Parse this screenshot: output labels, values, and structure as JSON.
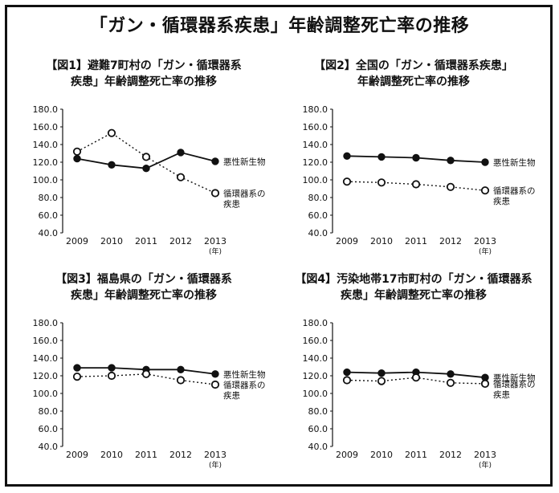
{
  "title": "「ガン・循環器系疾患」年齢調整死亡率の推移",
  "year_unit": "(年)",
  "chart_data": [
    {
      "type": "line",
      "title_lines": [
        "【図1】避難7町村の「ガン・循環器系",
        "疾患」年齢調整死亡率の推移"
      ],
      "categories": [
        "2009",
        "2010",
        "2011",
        "2012",
        "2013"
      ],
      "ylim": [
        40,
        180
      ],
      "yticks": [
        "180.0",
        "160.0",
        "140.0",
        "120.0",
        "100.0",
        "80.0",
        "60.0",
        "40.0"
      ],
      "series": [
        {
          "name": "悪性新生物",
          "label_lines": [
            "悪性新生物"
          ],
          "style": "solid",
          "values": [
            124,
            117,
            113,
            131,
            121
          ]
        },
        {
          "name": "循環器系の疾患",
          "label_lines": [
            "循環器系の",
            "疾患"
          ],
          "style": "dotted",
          "values": [
            132,
            153,
            126,
            103,
            85
          ]
        }
      ]
    },
    {
      "type": "line",
      "title_lines": [
        "【図2】全国の「ガン・循環器系疾患」",
        "年齢調整死亡率の推移"
      ],
      "categories": [
        "2009",
        "2010",
        "2011",
        "2012",
        "2013"
      ],
      "ylim": [
        40,
        180
      ],
      "yticks": [
        "180.0",
        "160.0",
        "140.0",
        "120.0",
        "100.0",
        "80.0",
        "60.0",
        "40.0"
      ],
      "series": [
        {
          "name": "悪性新生物",
          "label_lines": [
            "悪性新生物"
          ],
          "style": "solid",
          "values": [
            127,
            126,
            125,
            122,
            120
          ]
        },
        {
          "name": "循環器系の疾患",
          "label_lines": [
            "循環器系の",
            "疾患"
          ],
          "style": "dotted",
          "values": [
            98,
            97,
            95,
            92,
            88
          ]
        }
      ]
    },
    {
      "type": "line",
      "title_lines": [
        "【図3】福島県の「ガン・循環器系",
        "疾患」年齢調整死亡率の推移"
      ],
      "categories": [
        "2009",
        "2010",
        "2011",
        "2012",
        "2013"
      ],
      "ylim": [
        40,
        180
      ],
      "yticks": [
        "180.0",
        "160.0",
        "140.0",
        "120.0",
        "100.0",
        "80.0",
        "60.0",
        "40.0"
      ],
      "series": [
        {
          "name": "悪性新生物",
          "label_lines": [
            "悪性新生物"
          ],
          "style": "solid",
          "values": [
            129,
            129,
            127,
            127,
            122
          ]
        },
        {
          "name": "循環器系の疾患",
          "label_lines": [
            "循環器系の",
            "疾患"
          ],
          "style": "dotted",
          "values": [
            119,
            120,
            122,
            115,
            110
          ]
        }
      ]
    },
    {
      "type": "line",
      "title_lines": [
        "【図4】汚染地帯17市町村の「ガン・循環器系",
        "疾患」年齢調整死亡率の推移"
      ],
      "categories": [
        "2009",
        "2010",
        "2011",
        "2012",
        "2013"
      ],
      "ylim": [
        40,
        180
      ],
      "yticks": [
        "180.0",
        "160.0",
        "140.0",
        "120.0",
        "100.0",
        "80.0",
        "60.0",
        "40.0"
      ],
      "series": [
        {
          "name": "悪性新生物",
          "label_lines": [
            "悪性新生物"
          ],
          "style": "solid",
          "values": [
            124,
            123,
            124,
            122,
            118
          ]
        },
        {
          "name": "循環器系の疾患",
          "label_lines": [
            "循環器系の",
            "疾患"
          ],
          "style": "dotted",
          "values": [
            115,
            114,
            118,
            112,
            111
          ]
        }
      ]
    }
  ]
}
